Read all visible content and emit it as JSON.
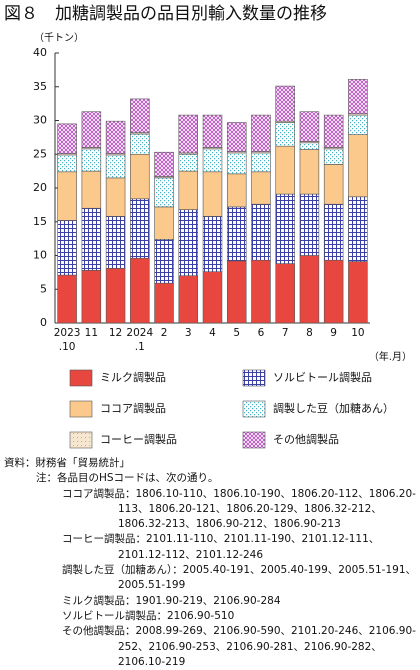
{
  "chart_data": {
    "type": "stacked_bar",
    "title": "図８　加糖調製品の品目別輸入数量の推移",
    "y_label": "（千トン）",
    "x_label": "（年.月）",
    "categories": [
      "2023\n.10",
      "11",
      "12",
      "2024\n.1",
      "2",
      "3",
      "4",
      "5",
      "6",
      "7",
      "8",
      "9",
      "10"
    ],
    "ylim": [
      0,
      40
    ],
    "yticks": [
      0,
      5,
      10,
      15,
      20,
      25,
      30,
      35,
      40
    ],
    "grid": false,
    "series": [
      {
        "name": "ミルク調製品",
        "color": "#e8473f",
        "values": [
          7.1,
          7.8,
          8.1,
          9.6,
          5.9,
          7.0,
          7.6,
          9.2,
          9.3,
          8.8,
          10.0,
          9.3,
          9.1
        ]
      },
      {
        "name": "ソルビトール調製品",
        "color": "#3b3fa8",
        "values": [
          8.1,
          9.2,
          7.7,
          8.8,
          6.5,
          9.8,
          8.2,
          8.0,
          8.3,
          10.3,
          9.1,
          8.3,
          9.6
        ]
      },
      {
        "name": "ココア調製品",
        "color": "#fbc98c",
        "values": [
          7.2,
          5.5,
          5.7,
          6.6,
          4.8,
          5.7,
          6.6,
          4.9,
          4.8,
          7.1,
          6.6,
          5.9,
          9.2
        ]
      },
      {
        "name": "調製した豆（加糖あん）",
        "color": "#3fb3c4",
        "values": [
          2.5,
          3.3,
          3.4,
          3.0,
          4.3,
          2.5,
          3.4,
          3.1,
          2.8,
          3.5,
          1.0,
          2.3,
          2.9
        ]
      },
      {
        "name": "コーヒー調製品",
        "color": "#d9a97a",
        "values": [
          0.2,
          0.2,
          0.2,
          0.2,
          0.2,
          0.2,
          0.2,
          0.2,
          0.2,
          0.2,
          0.2,
          0.2,
          0.2
        ]
      },
      {
        "name": "その他調製品",
        "color": "#b84bbf",
        "values": [
          4.4,
          5.3,
          4.8,
          5.0,
          3.6,
          5.6,
          4.8,
          4.3,
          5.4,
          5.2,
          4.4,
          4.8,
          5.1
        ]
      }
    ]
  },
  "notes": {
    "source": "資料：財務省「貿易統計」",
    "note": "注：各品目のHSコードは、次の通り。",
    "items": [
      {
        "name": "ココア調製品：",
        "codes": "1806.10-110、1806.10-190、1806.20-112、1806.20-113、1806.20-121、1806.20-129、1806.32-212、1806.32-213、1806.90-212、1806.90-213"
      },
      {
        "name": "コーヒー調製品：",
        "codes": "2101.11-110、2101.11-190、2101.12-111、2101.12-112、2101.12-246"
      },
      {
        "name": "調製した豆（加糖あん）：",
        "codes": "2005.40-191、2005.40-199、2005.51-191、2005.51-199"
      },
      {
        "name": "ミルク調製品：",
        "codes": "1901.90-219、2106.90-284"
      },
      {
        "name": "ソルビトール調製品：",
        "codes": "2106.90-510"
      },
      {
        "name": "その他調製品：",
        "codes": "2008.99-269、2106.90-590、2101.20-246、2106.90-252、2106.90-253、2106.90-281、2106.90-282、2106.10-219"
      }
    ]
  }
}
